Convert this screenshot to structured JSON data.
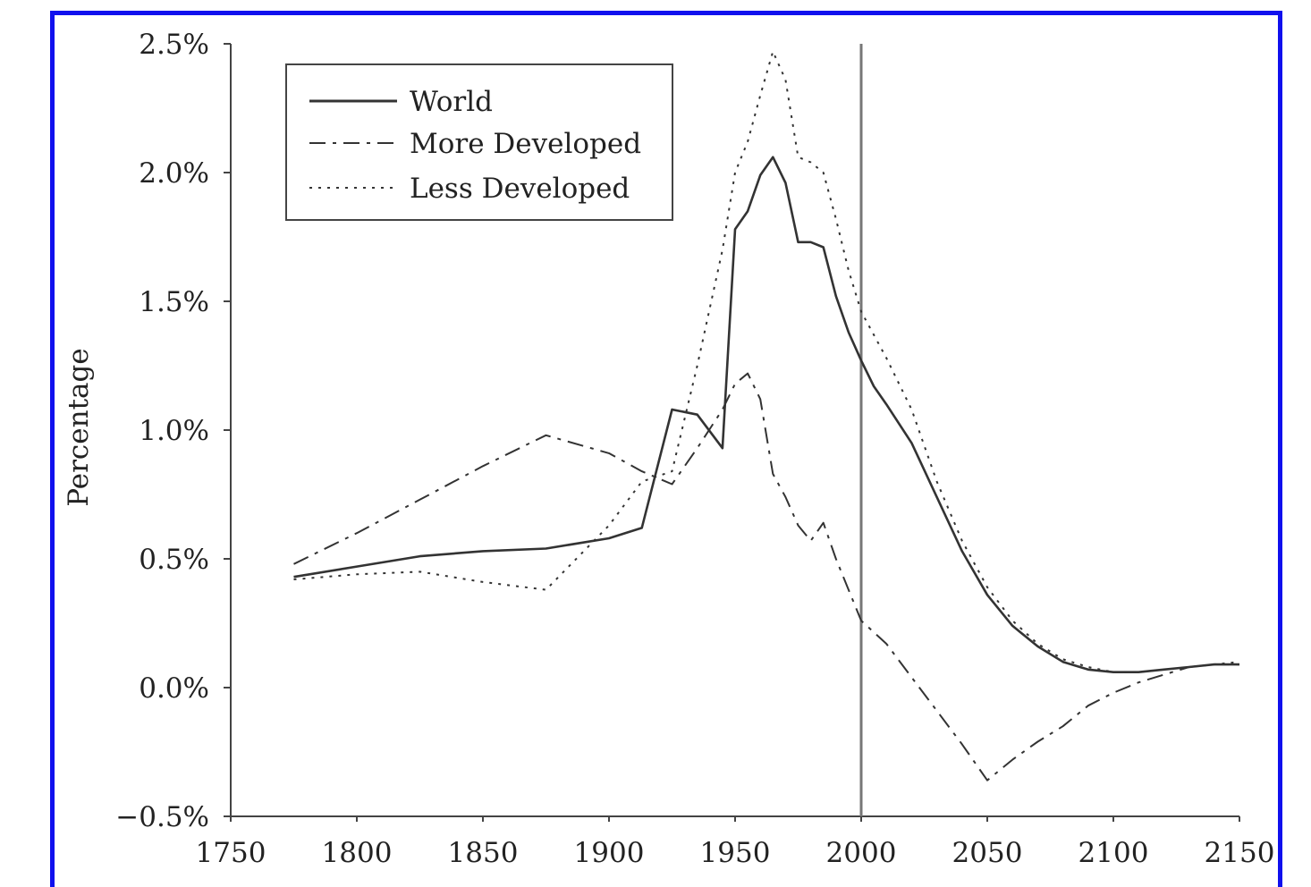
{
  "colors": {
    "frame": "#1010ee",
    "lines": "#333333",
    "reference_line": "#777777"
  },
  "chart_data": {
    "type": "line",
    "title": "",
    "xlabel": "",
    "ylabel": "Percentage",
    "xlim": [
      1750,
      2150
    ],
    "ylim": [
      -0.5,
      2.5
    ],
    "x_ticks": [
      "1750",
      "1800",
      "1850",
      "1900",
      "1950",
      "2000",
      "2050",
      "2100",
      "2150"
    ],
    "y_ticks": [
      "−0.5%",
      "0.0%",
      "0.5%",
      "1.0%",
      "1.5%",
      "2.0%",
      "2.5%"
    ],
    "reference_x": 2000,
    "grid": false,
    "legend_position": "top-left",
    "series": [
      {
        "name": "World",
        "style": "solid",
        "x": [
          1775,
          1800,
          1825,
          1850,
          1875,
          1900,
          1913,
          1925,
          1930,
          1935,
          1945,
          1950,
          1955,
          1960,
          1965,
          1970,
          1975,
          1980,
          1985,
          1990,
          1995,
          2000,
          2005,
          2010,
          2020,
          2030,
          2040,
          2050,
          2060,
          2070,
          2080,
          2090,
          2100,
          2110,
          2120,
          2130,
          2140,
          2150
        ],
        "y": [
          0.43,
          0.47,
          0.51,
          0.53,
          0.54,
          0.58,
          0.62,
          1.08,
          1.07,
          1.06,
          0.93,
          1.78,
          1.85,
          1.99,
          2.06,
          1.96,
          1.73,
          1.73,
          1.71,
          1.52,
          1.38,
          1.27,
          1.17,
          1.1,
          0.95,
          0.74,
          0.53,
          0.36,
          0.24,
          0.16,
          0.1,
          0.07,
          0.06,
          0.06,
          0.07,
          0.08,
          0.09,
          0.09
        ]
      },
      {
        "name": "More Developed",
        "style": "dashdot",
        "x": [
          1775,
          1800,
          1825,
          1850,
          1875,
          1900,
          1913,
          1925,
          1935,
          1945,
          1950,
          1955,
          1960,
          1965,
          1970,
          1975,
          1980,
          1985,
          1990,
          1995,
          2000,
          2010,
          2020,
          2030,
          2040,
          2050,
          2060,
          2070,
          2080,
          2090,
          2100,
          2110,
          2120,
          2130,
          2140,
          2150
        ],
        "y": [
          0.48,
          0.6,
          0.73,
          0.86,
          0.98,
          0.91,
          0.84,
          0.79,
          0.93,
          1.08,
          1.18,
          1.22,
          1.12,
          0.83,
          0.74,
          0.63,
          0.57,
          0.64,
          0.5,
          0.38,
          0.26,
          0.17,
          0.04,
          -0.09,
          -0.22,
          -0.36,
          -0.28,
          -0.21,
          -0.15,
          -0.07,
          -0.02,
          0.02,
          0.05,
          0.08,
          0.09,
          0.09
        ]
      },
      {
        "name": "Less Developed",
        "style": "dotted",
        "x": [
          1775,
          1800,
          1825,
          1850,
          1875,
          1900,
          1913,
          1925,
          1935,
          1945,
          1950,
          1955,
          1960,
          1965,
          1970,
          1975,
          1980,
          1985,
          1990,
          1995,
          2000,
          2010,
          2020,
          2030,
          2040,
          2050,
          2060,
          2070,
          2080,
          2090,
          2100,
          2110,
          2120,
          2130,
          2140,
          2150
        ],
        "y": [
          0.42,
          0.44,
          0.45,
          0.41,
          0.38,
          0.63,
          0.8,
          0.84,
          1.25,
          1.7,
          2.0,
          2.12,
          2.3,
          2.47,
          2.36,
          2.06,
          2.04,
          2.0,
          1.82,
          1.62,
          1.46,
          1.28,
          1.08,
          0.8,
          0.57,
          0.39,
          0.26,
          0.17,
          0.11,
          0.08,
          0.06,
          0.06,
          0.07,
          0.08,
          0.09,
          0.1
        ]
      }
    ]
  }
}
